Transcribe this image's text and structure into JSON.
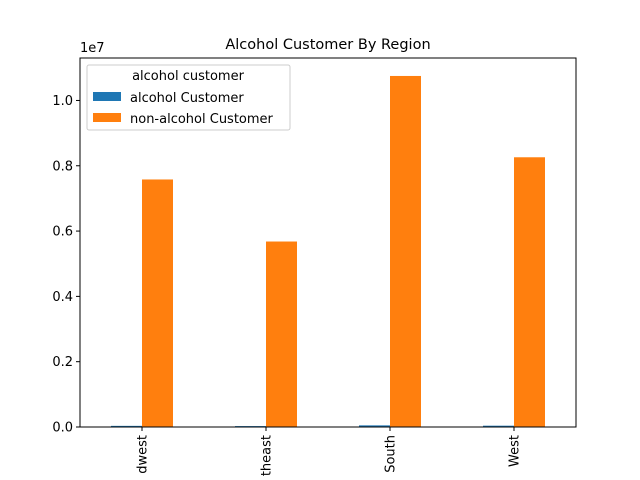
{
  "chart_data": {
    "type": "bar",
    "title": "Alcohol Customer By Region",
    "xlabel": "",
    "ylabel": "",
    "y_scale_label": "1e7",
    "y_scale": 10000000,
    "ylim": [
      0,
      11300000
    ],
    "yticks": [
      0,
      2000000,
      4000000,
      6000000,
      8000000,
      10000000
    ],
    "ytick_labels": [
      "0.0",
      "0.2",
      "0.4",
      "0.6",
      "0.8",
      "1.0"
    ],
    "categories": [
      "Midwest",
      "Northeast",
      "South",
      "West"
    ],
    "category_labels_visible": [
      "dwest",
      "theast",
      "South",
      "West"
    ],
    "legend_title": "alcohol customer",
    "legend_position": "upper-left",
    "series": [
      {
        "name": "alcohol Customer",
        "color": "#1f77b4",
        "values": [
          35000,
          28000,
          50000,
          40000
        ]
      },
      {
        "name": "non-alcohol Customer",
        "color": "#ff7f0e",
        "values": [
          7580000,
          5680000,
          10750000,
          8260000
        ]
      }
    ]
  }
}
